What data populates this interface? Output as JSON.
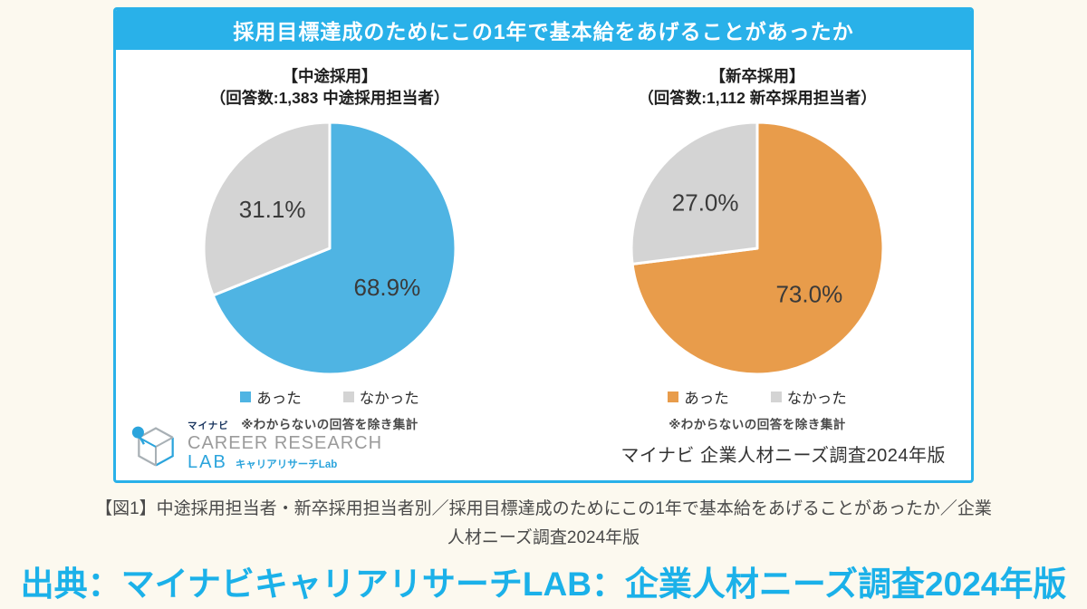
{
  "page": {
    "background": "#FCF9EF",
    "caption": "【図1】中途採用担当者・新卒採用担当者別／採用目標達成のためにこの1年で基本給をあげることがあったか／企業人材ニーズ調査2024年版",
    "source_line": "出典：マイナビキャリアリサーチLAB：企業人材ニーズ調査2024年版"
  },
  "panel": {
    "title": "採用目標達成のためにこの1年で基本給をあげることがあったか",
    "accent_color": "#29B1E9",
    "note": "※わからないの回答を除き集計",
    "survey_label": "マイナビ 企業人材ニーズ調査2024年版",
    "logo": {
      "brand": "マイナビ",
      "line1": "CAREER RESEARCH",
      "line2": "LAB",
      "line2_sub": "キャリアリサーチLab"
    }
  },
  "chart_data": [
    {
      "type": "pie",
      "title": "【中途採用】",
      "subtitle": "（回答数:1,383 中途採用担当者）",
      "labels": [
        "あった",
        "なかった"
      ],
      "values": [
        68.9,
        31.1
      ],
      "value_labels": [
        "68.9%",
        "31.1%"
      ],
      "colors": [
        "#4FB4E3",
        "#D4D4D4"
      ],
      "start_angle_deg": 0,
      "direction": "clockwise",
      "legend_position": "bottom"
    },
    {
      "type": "pie",
      "title": "【新卒採用】",
      "subtitle": "（回答数:1,112 新卒採用担当者）",
      "labels": [
        "あった",
        "なかった"
      ],
      "values": [
        73.0,
        27.0
      ],
      "value_labels": [
        "73.0%",
        "27.0%"
      ],
      "colors": [
        "#E89C4B",
        "#D4D4D4"
      ],
      "start_angle_deg": 0,
      "direction": "clockwise",
      "legend_position": "bottom"
    }
  ]
}
